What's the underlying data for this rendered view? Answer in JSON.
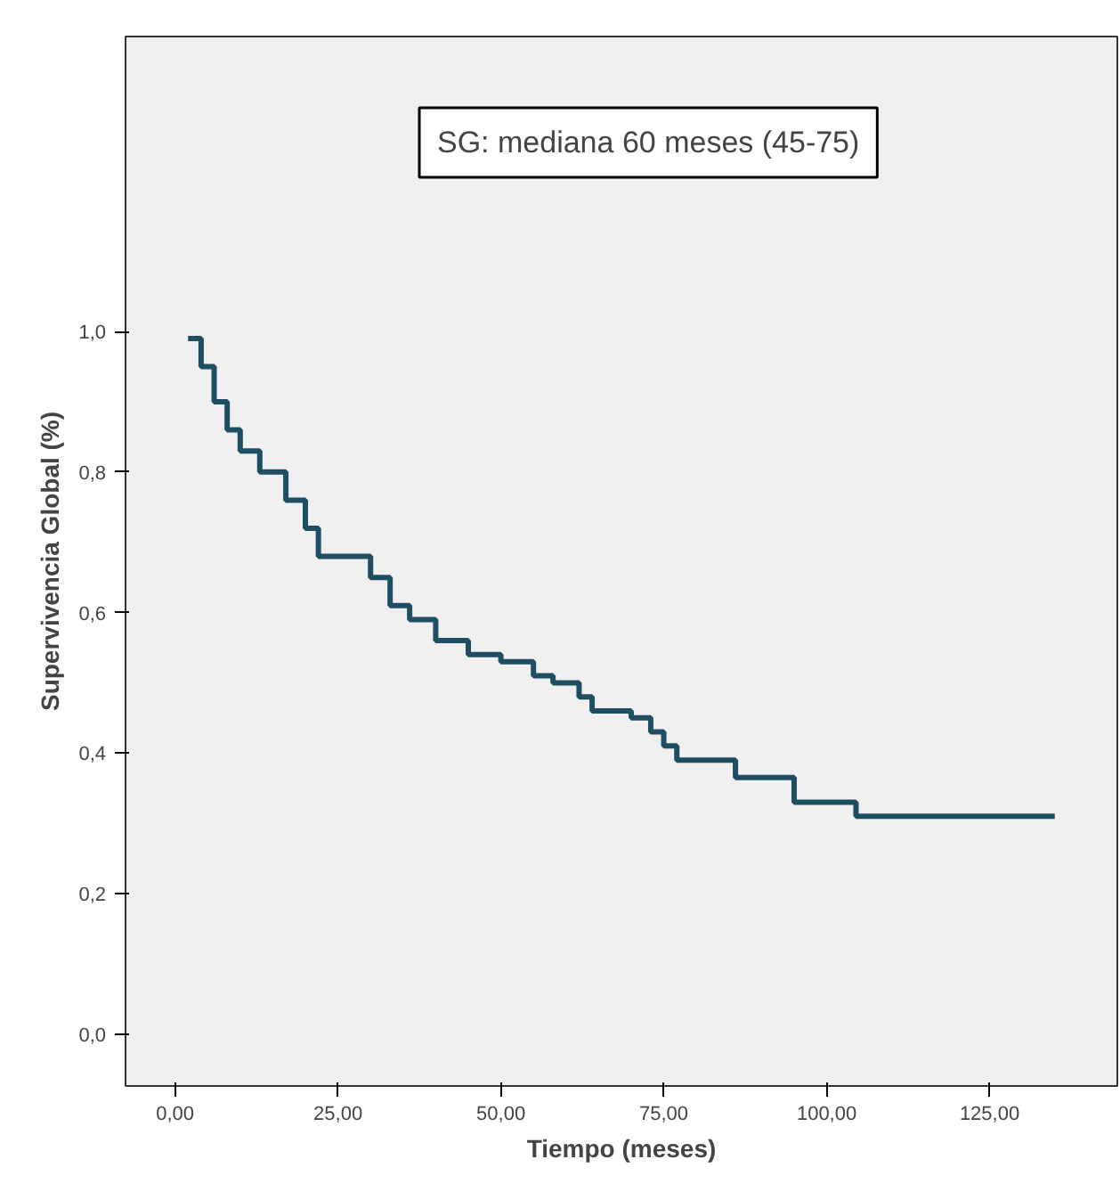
{
  "chart_data": {
    "type": "step",
    "xlabel": "Tiempo (meses)",
    "ylabel": "Supervivencia Global (%)",
    "annotations": [
      "SG: mediana 60 meses (45-75)"
    ],
    "x": [
      2,
      4,
      6,
      8,
      10,
      13,
      17,
      20,
      22,
      28,
      30,
      33,
      36,
      40,
      45,
      50,
      55,
      58,
      62,
      64,
      68,
      70,
      73,
      75,
      77,
      84,
      86,
      94,
      95,
      104,
      104.5,
      135
    ],
    "series": [
      {
        "color": "#1f4e63",
        "values": [
          0.99,
          0.95,
          0.9,
          0.86,
          0.83,
          0.8,
          0.76,
          0.72,
          0.68,
          0.68,
          0.65,
          0.61,
          0.59,
          0.56,
          0.54,
          0.53,
          0.51,
          0.5,
          0.48,
          0.46,
          0.46,
          0.45,
          0.43,
          0.41,
          0.39,
          0.39,
          0.365,
          0.365,
          0.33,
          0.33,
          0.31,
          0.31
        ]
      }
    ],
    "xlim": [
      -7.6,
      144.6
    ],
    "ylim": [
      -0.074,
      1.42
    ],
    "xticks": [
      {
        "value": 0,
        "label": "0,00"
      },
      {
        "value": 25,
        "label": "25,00"
      },
      {
        "value": 50,
        "label": "50,00"
      },
      {
        "value": 75,
        "label": "75,00"
      },
      {
        "value": 100,
        "label": "100,00"
      },
      {
        "value": 125,
        "label": "125,00"
      }
    ],
    "yticks": [
      {
        "value": 0,
        "label": "0,0"
      },
      {
        "value": 0.2,
        "label": "0,2"
      },
      {
        "value": 0.4,
        "label": "0,4"
      },
      {
        "value": 0.6,
        "label": "0,6"
      },
      {
        "value": 0.8,
        "label": "0,8"
      },
      {
        "value": 1.0,
        "label": "1,0"
      }
    ],
    "grid": false,
    "line_style": "solid"
  }
}
